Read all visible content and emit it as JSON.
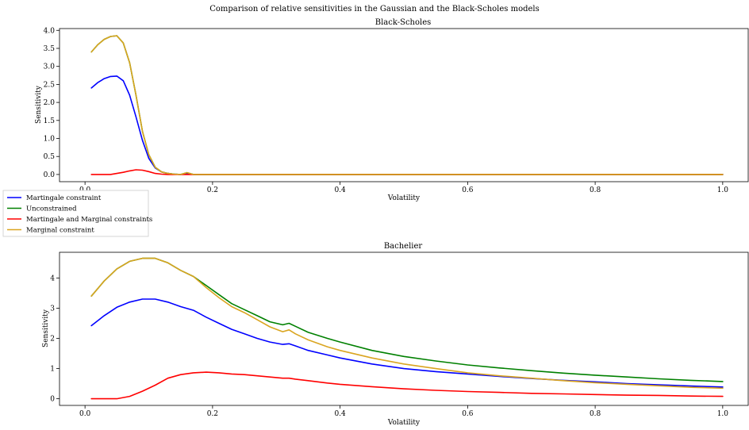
{
  "figure": {
    "suptitle": "Comparison of relative sensitivities in the Gaussian and the Black-Scholes models"
  },
  "legend": {
    "placement": "left, between panels",
    "entries": [
      {
        "label": "Martingale constraint",
        "color": "#0000ff"
      },
      {
        "label": "Unconstrained",
        "color": "#008000"
      },
      {
        "label": "Martingale and Marginal  constraints",
        "color": "#ff0000"
      },
      {
        "label": "Marginal  constraint",
        "color": "#daa520"
      }
    ]
  },
  "chart_data": [
    {
      "type": "line",
      "title": "Black-Scholes",
      "xlabel": "Volatility",
      "ylabel": "Sensitivity",
      "xlim": [
        -0.04,
        1.04
      ],
      "ylim": [
        -0.2,
        4.05
      ],
      "xticks": [
        0.0,
        0.2,
        0.4,
        0.6,
        0.8,
        1.0
      ],
      "xtick_labels": [
        "0.0",
        "0.2",
        "0.4",
        "0.6",
        "0.8",
        "1.0"
      ],
      "yticks": [
        0.0,
        0.5,
        1.0,
        1.5,
        2.0,
        2.5,
        3.0,
        3.5,
        4.0
      ],
      "ytick_labels": [
        "0.0",
        "0.5",
        "1.0",
        "1.5",
        "2.0",
        "2.5",
        "3.0",
        "3.5",
        "4.0"
      ],
      "grid": false,
      "x": [
        0.01,
        0.02,
        0.03,
        0.04,
        0.05,
        0.06,
        0.07,
        0.08,
        0.09,
        0.1,
        0.11,
        0.12,
        0.13,
        0.14,
        0.15,
        0.16,
        0.17,
        0.18,
        0.2,
        0.3,
        0.4,
        0.5,
        0.6,
        0.7,
        0.8,
        0.9,
        1.0
      ],
      "series": [
        {
          "name": "Martingale constraint",
          "color": "#0000ff",
          "values": [
            2.4,
            2.55,
            2.66,
            2.72,
            2.73,
            2.6,
            2.2,
            1.6,
            0.95,
            0.45,
            0.18,
            0.07,
            0.03,
            0.01,
            0.0,
            0.02,
            0.0,
            0.0,
            0.0,
            0.0,
            0.0,
            0.0,
            0.0,
            0.0,
            0.0,
            0.0,
            0.0
          ]
        },
        {
          "name": "Unconstrained",
          "color": "#008000",
          "values": [
            3.4,
            3.6,
            3.75,
            3.83,
            3.85,
            3.65,
            3.1,
            2.2,
            1.2,
            0.55,
            0.2,
            0.07,
            0.03,
            0.01,
            0.0,
            0.05,
            0.0,
            0.0,
            0.0,
            0.0,
            0.0,
            0.0,
            0.0,
            0.0,
            0.0,
            0.0,
            0.0
          ]
        },
        {
          "name": "Martingale and Marginal  constraints",
          "color": "#ff0000",
          "values": [
            0.0,
            0.0,
            0.0,
            0.0,
            0.03,
            0.06,
            0.1,
            0.13,
            0.12,
            0.08,
            0.03,
            0.01,
            0.0,
            0.0,
            0.0,
            0.0,
            0.0,
            0.0,
            0.0,
            0.0,
            0.0,
            0.0,
            0.0,
            0.0,
            0.0,
            0.0,
            0.0
          ]
        },
        {
          "name": "Marginal  constraint",
          "color": "#daa520",
          "values": [
            3.4,
            3.6,
            3.75,
            3.83,
            3.85,
            3.65,
            3.1,
            2.2,
            1.2,
            0.55,
            0.2,
            0.07,
            0.03,
            0.01,
            0.0,
            0.05,
            0.0,
            0.0,
            0.0,
            0.0,
            0.0,
            0.0,
            0.0,
            0.0,
            0.0,
            0.0,
            0.0
          ]
        }
      ]
    },
    {
      "type": "line",
      "title": "Bachelier",
      "xlabel": "Volatility",
      "ylabel": "Sensitivity",
      "xlim": [
        -0.04,
        1.04
      ],
      "ylim": [
        -0.22,
        4.85
      ],
      "xticks": [
        0.0,
        0.2,
        0.4,
        0.6,
        0.8,
        1.0
      ],
      "xtick_labels": [
        "0.0",
        "0.2",
        "0.4",
        "0.6",
        "0.8",
        "1.0"
      ],
      "yticks": [
        0,
        1,
        2,
        3,
        4
      ],
      "ytick_labels": [
        "0",
        "1",
        "2",
        "3",
        "4"
      ],
      "grid": false,
      "x": [
        0.01,
        0.03,
        0.05,
        0.07,
        0.09,
        0.11,
        0.13,
        0.15,
        0.17,
        0.19,
        0.21,
        0.23,
        0.25,
        0.27,
        0.29,
        0.31,
        0.32,
        0.33,
        0.35,
        0.38,
        0.4,
        0.45,
        0.5,
        0.55,
        0.6,
        0.65,
        0.7,
        0.75,
        0.8,
        0.85,
        0.9,
        0.95,
        1.0
      ],
      "series": [
        {
          "name": "Martingale constraint",
          "color": "#0000ff",
          "values": [
            2.42,
            2.75,
            3.03,
            3.2,
            3.3,
            3.3,
            3.2,
            3.05,
            2.93,
            2.7,
            2.5,
            2.3,
            2.15,
            2.0,
            1.88,
            1.8,
            1.82,
            1.75,
            1.6,
            1.45,
            1.35,
            1.15,
            1.0,
            0.9,
            0.82,
            0.74,
            0.67,
            0.61,
            0.56,
            0.5,
            0.46,
            0.42,
            0.39
          ]
        },
        {
          "name": "Unconstrained",
          "color": "#008000",
          "values": [
            3.4,
            3.9,
            4.3,
            4.55,
            4.65,
            4.65,
            4.5,
            4.25,
            4.05,
            3.75,
            3.45,
            3.15,
            2.95,
            2.75,
            2.55,
            2.45,
            2.5,
            2.4,
            2.2,
            2.0,
            1.88,
            1.6,
            1.4,
            1.25,
            1.12,
            1.02,
            0.93,
            0.85,
            0.78,
            0.72,
            0.66,
            0.61,
            0.57
          ]
        },
        {
          "name": "Martingale and Marginal  constraints",
          "color": "#ff0000",
          "values": [
            0.0,
            0.0,
            0.0,
            0.08,
            0.25,
            0.45,
            0.68,
            0.8,
            0.86,
            0.88,
            0.86,
            0.82,
            0.8,
            0.76,
            0.72,
            0.68,
            0.68,
            0.65,
            0.6,
            0.52,
            0.48,
            0.4,
            0.33,
            0.28,
            0.24,
            0.21,
            0.18,
            0.16,
            0.14,
            0.12,
            0.11,
            0.09,
            0.08
          ]
        },
        {
          "name": "Marginal  constraint",
          "color": "#daa520",
          "values": [
            3.4,
            3.9,
            4.3,
            4.55,
            4.65,
            4.65,
            4.5,
            4.25,
            4.05,
            3.68,
            3.35,
            3.05,
            2.85,
            2.62,
            2.38,
            2.22,
            2.28,
            2.15,
            1.95,
            1.72,
            1.6,
            1.35,
            1.15,
            1.0,
            0.86,
            0.76,
            0.68,
            0.6,
            0.53,
            0.48,
            0.43,
            0.38,
            0.35
          ]
        }
      ]
    }
  ]
}
